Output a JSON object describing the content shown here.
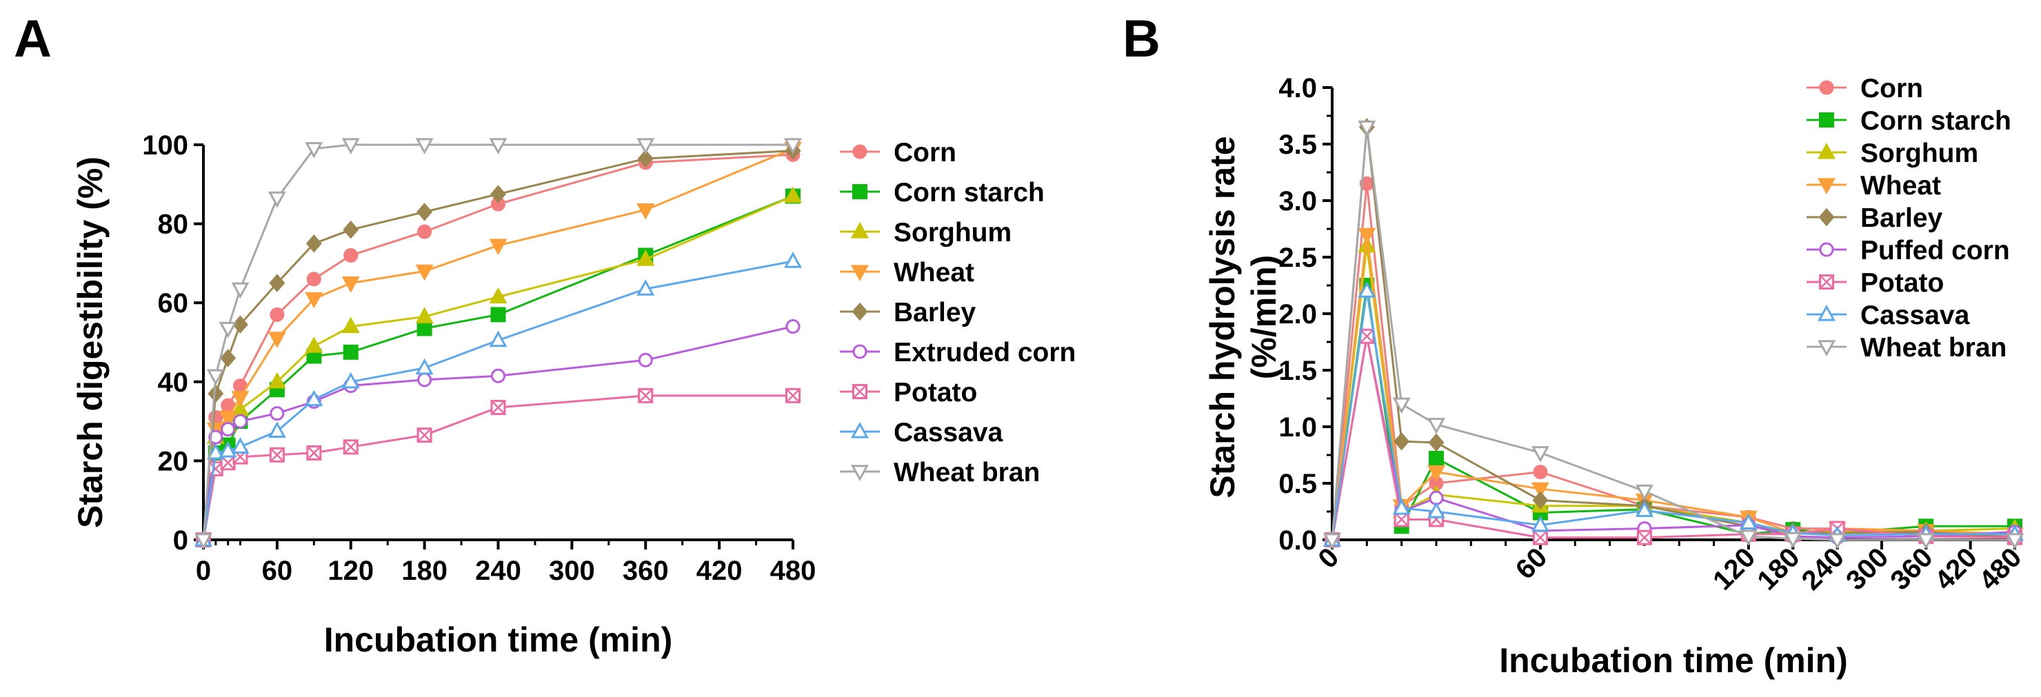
{
  "chart_data": [
    {
      "panel": "A",
      "type": "line",
      "title": "",
      "xlabel": "Incubation time (min)",
      "ylabel": "Starch digestibility (%)",
      "xlim": [
        0,
        480
      ],
      "ylim": [
        0,
        100
      ],
      "xticks": [
        "0",
        "60",
        "120",
        "180",
        "240",
        "300",
        "360",
        "420",
        "480"
      ],
      "yticks": [
        "0",
        "20",
        "40",
        "60",
        "80",
        "100"
      ],
      "grid": false,
      "legend": "right",
      "x": [
        0,
        10,
        20,
        30,
        60,
        90,
        120,
        180,
        240,
        360,
        480
      ],
      "series": [
        {
          "name": "Corn",
          "color": "#f47c7c",
          "marker": "circle-filled",
          "values": [
            0,
            31,
            34,
            39,
            57,
            66,
            72,
            78,
            85,
            95.5,
            97.5
          ]
        },
        {
          "name": "Corn starch",
          "color": "#10b910",
          "marker": "square-filled",
          "values": [
            0,
            22,
            24,
            30,
            38,
            46.5,
            47.5,
            53.5,
            57,
            72,
            87
          ]
        },
        {
          "name": "Sorghum",
          "color": "#c9c400",
          "marker": "triangle-up-filled",
          "values": [
            0,
            26,
            29,
            33,
            40,
            49,
            54,
            56.5,
            61.5,
            71,
            87
          ]
        },
        {
          "name": "Wheat",
          "color": "#ff9f38",
          "marker": "triangle-down-filled",
          "values": [
            0,
            28,
            31,
            36,
            51,
            61,
            65,
            68,
            74.5,
            83.5,
            99
          ]
        },
        {
          "name": "Barley",
          "color": "#9b8650",
          "marker": "diamond-filled",
          "values": [
            0,
            37,
            46,
            54.5,
            65,
            75,
            78.5,
            83,
            87.5,
            96.5,
            98.5
          ]
        },
        {
          "name": "Extruded corn",
          "color": "#b95ce0",
          "marker": "circle-open",
          "values": [
            0,
            26,
            28,
            30,
            32,
            35,
            39,
            40.5,
            41.5,
            45.5,
            54
          ]
        },
        {
          "name": "Potato",
          "color": "#ef6aa0",
          "marker": "square-crossed",
          "values": [
            0,
            18,
            19.5,
            21,
            21.5,
            22,
            23.5,
            26.5,
            33.5,
            36.5,
            36.5
          ]
        },
        {
          "name": "Cassava",
          "color": "#5aa8ee",
          "marker": "triangle-up-open",
          "values": [
            0,
            22,
            22.5,
            23.5,
            27.5,
            35.5,
            40,
            43.5,
            50.5,
            63.5,
            70.5
          ]
        },
        {
          "name": "Wheat bran",
          "color": "#a8a8a8",
          "marker": "triangle-down-open",
          "values": [
            0,
            41.5,
            53.5,
            63.5,
            86.5,
            99,
            100,
            100,
            100,
            100,
            100
          ]
        }
      ]
    },
    {
      "panel": "B",
      "type": "line",
      "title": "",
      "xlabel": "Incubation time (min)",
      "ylabel": "Starch hydrolysis rate",
      "ylabel2": "(%/min)",
      "ylim": [
        0,
        4
      ],
      "yticks": [
        "0.0",
        "0.5",
        "1.0",
        "1.5",
        "2.0",
        "2.5",
        "3.0",
        "3.5",
        "4.0"
      ],
      "xticks": [
        "0",
        "60",
        "120",
        "180",
        "240",
        "300",
        "360",
        "420",
        "480"
      ],
      "x_tick_positions": [
        0,
        60,
        120,
        180,
        240,
        300,
        360,
        420,
        480
      ],
      "x_axis_note": "segmented scale: 0-120 expanded, 120-480 compressed",
      "grid": false,
      "legend": "top-right",
      "x": [
        0,
        10,
        20,
        30,
        60,
        90,
        120,
        180,
        240,
        360,
        480
      ],
      "series": [
        {
          "name": "Corn",
          "color": "#f47c7c",
          "marker": "circle-filled",
          "values": [
            0,
            3.15,
            0.3,
            0.5,
            0.6,
            0.3,
            0.2,
            0.1,
            0.1,
            0.05,
            0.03
          ]
        },
        {
          "name": "Corn starch",
          "color": "#10b910",
          "marker": "square-filled",
          "values": [
            0,
            2.25,
            0.12,
            0.72,
            0.24,
            0.27,
            0.05,
            0.09,
            0.06,
            0.12,
            0.12
          ]
        },
        {
          "name": "Sorghum",
          "color": "#c9c400",
          "marker": "triangle-up-filled",
          "values": [
            0,
            2.6,
            0.25,
            0.4,
            0.3,
            0.3,
            0.15,
            0.05,
            0.08,
            0.08,
            0.1
          ]
        },
        {
          "name": "Wheat",
          "color": "#ff9f38",
          "marker": "triangle-down-filled",
          "values": [
            0,
            2.7,
            0.3,
            0.6,
            0.45,
            0.35,
            0.2,
            0.06,
            0.1,
            0.08,
            0.05
          ]
        },
        {
          "name": "Barley",
          "color": "#9b8650",
          "marker": "diamond-filled",
          "values": [
            0,
            3.65,
            0.87,
            0.86,
            0.35,
            0.3,
            0.12,
            0.07,
            0.06,
            0.07,
            0.02
          ]
        },
        {
          "name": "Puffed corn",
          "color": "#b95ce0",
          "marker": "circle-open",
          "values": [
            0,
            1.8,
            0.25,
            0.37,
            0.08,
            0.1,
            0.13,
            0.03,
            0.02,
            0.03,
            0.07
          ]
        },
        {
          "name": "Potato",
          "color": "#ef6aa0",
          "marker": "square-crossed",
          "values": [
            0,
            1.8,
            0.18,
            0.18,
            0.02,
            0.02,
            0.05,
            0.05,
            0.1,
            0.03,
            0.02
          ]
        },
        {
          "name": "Cassava",
          "color": "#5aa8ee",
          "marker": "triangle-up-open",
          "values": [
            0,
            2.2,
            0.28,
            0.25,
            0.13,
            0.26,
            0.15,
            0.06,
            0.04,
            0.05,
            0.05
          ]
        },
        {
          "name": "Wheat bran",
          "color": "#a8a8a8",
          "marker": "triangle-down-open",
          "values": [
            0,
            3.65,
            1.2,
            1.02,
            0.77,
            0.43,
            0.03,
            0.01,
            0.0,
            0.0,
            0.0
          ]
        }
      ]
    }
  ]
}
